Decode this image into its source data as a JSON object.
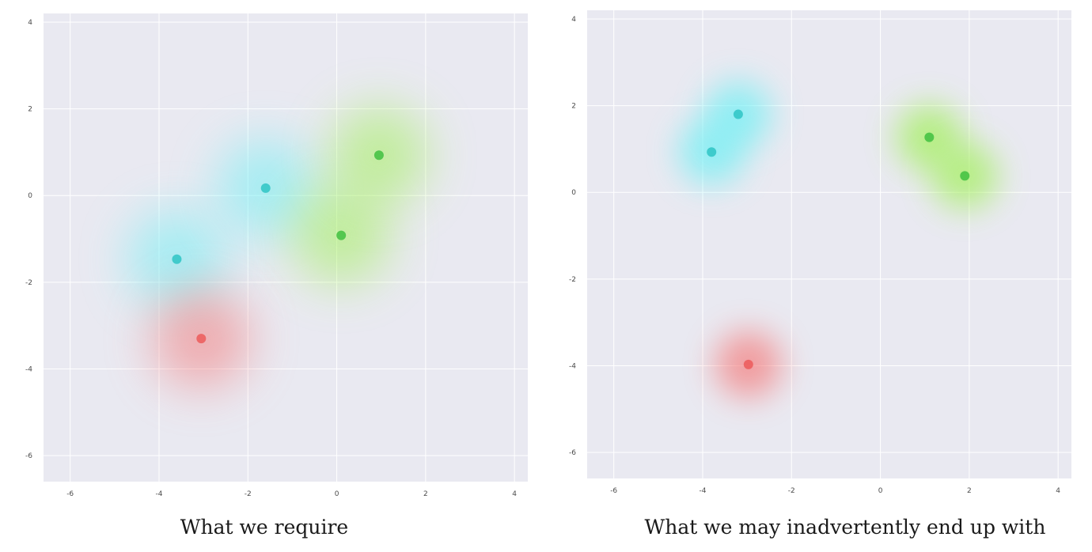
{
  "chart_data": [
    {
      "type": "scatter",
      "xlim": [
        -6.6,
        4.3
      ],
      "ylim": [
        -6.6,
        4.2
      ],
      "xticks": [
        -6,
        -4,
        -2,
        0,
        2,
        4
      ],
      "yticks": [
        -6,
        -4,
        -2,
        0,
        2,
        4
      ],
      "grid": true,
      "caption": "What we require",
      "series": [
        {
          "color": "#2ec4c4",
          "glow": "#6ff0f4",
          "points": [
            [
              -3.6,
              -1.47
            ],
            [
              -1.6,
              0.17
            ]
          ]
        },
        {
          "color": "#3fbf3f",
          "glow": "#a2f05a",
          "points": [
            [
              0.1,
              -0.92
            ],
            [
              0.95,
              0.93
            ]
          ]
        },
        {
          "color": "#ec5a5a",
          "glow": "#f47c7c",
          "points": [
            [
              -3.05,
              -3.3
            ]
          ]
        }
      ]
    },
    {
      "type": "scatter",
      "xlim": [
        -6.6,
        4.3
      ],
      "ylim": [
        -6.6,
        4.2
      ],
      "xticks": [
        -6,
        -4,
        -2,
        0,
        2,
        4
      ],
      "yticks": [
        -6,
        -4,
        -2,
        0,
        2,
        4
      ],
      "grid": true,
      "caption": "What we may inadvertently end up with",
      "series": [
        {
          "color": "#2ec4c4",
          "glow": "#6ff0f4",
          "points": [
            [
              -3.8,
              0.93
            ],
            [
              -3.2,
              1.8
            ]
          ]
        },
        {
          "color": "#3fbf3f",
          "glow": "#a2f05a",
          "points": [
            [
              1.1,
              1.27
            ],
            [
              1.9,
              0.38
            ]
          ]
        },
        {
          "color": "#ec5a5a",
          "glow": "#f47c7c",
          "points": [
            [
              -2.97,
              -3.97
            ]
          ]
        }
      ]
    }
  ]
}
